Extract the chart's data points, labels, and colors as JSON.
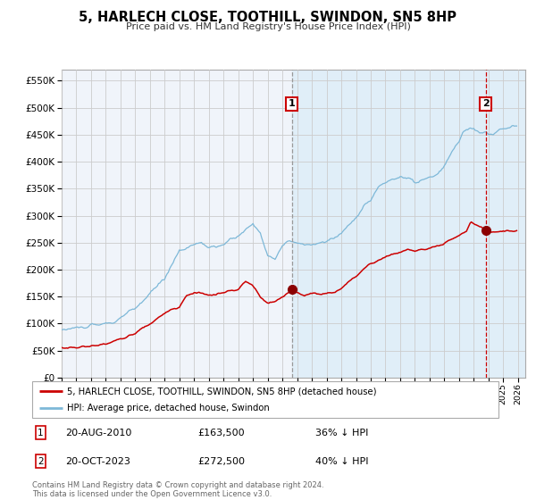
{
  "title": "5, HARLECH CLOSE, TOOTHILL, SWINDON, SN5 8HP",
  "subtitle": "Price paid vs. HM Land Registry's House Price Index (HPI)",
  "legend_property": "5, HARLECH CLOSE, TOOTHILL, SWINDON, SN5 8HP (detached house)",
  "legend_hpi": "HPI: Average price, detached house, Swindon",
  "footnote": "Contains HM Land Registry data © Crown copyright and database right 2024.\nThis data is licensed under the Open Government Licence v3.0.",
  "sale1_date": "20-AUG-2010",
  "sale1_price": 163500,
  "sale1_pct": "36% ↓ HPI",
  "sale2_date": "20-OCT-2023",
  "sale2_price": 272500,
  "sale2_pct": "40% ↓ HPI",
  "sale1_year": 2010.637,
  "sale2_year": 2023.803,
  "hpi_color": "#7db8d8",
  "property_color": "#cc0000",
  "marker_color": "#8b0000",
  "vline1_color": "#999999",
  "vline2_color": "#cc0000",
  "shade_color": "#e0eef8",
  "grid_color": "#cccccc",
  "bg_color": "#f0f4fa",
  "ylim": [
    0,
    570000
  ],
  "xlim_start": 1995.0,
  "xlim_end": 2026.5,
  "yticks": [
    0,
    50000,
    100000,
    150000,
    200000,
    250000,
    300000,
    350000,
    400000,
    450000,
    500000,
    550000
  ],
  "hpi_anchors": {
    "1995.0": 88000,
    "1996.0": 92000,
    "1997.0": 95000,
    "1998.5": 102000,
    "2000.0": 128000,
    "2001.0": 155000,
    "2002.0": 185000,
    "2003.0": 235000,
    "2003.5": 242000,
    "2004.5": 250000,
    "2005.0": 242000,
    "2005.5": 238000,
    "2006.0": 248000,
    "2006.5": 255000,
    "2007.0": 262000,
    "2007.5": 272000,
    "2008.0": 285000,
    "2008.5": 268000,
    "2009.0": 228000,
    "2009.5": 218000,
    "2010.0": 245000,
    "2010.5": 252000,
    "2011.0": 250000,
    "2011.5": 245000,
    "2012.0": 248000,
    "2012.5": 250000,
    "2013.0": 252000,
    "2013.5": 258000,
    "2014.0": 268000,
    "2014.5": 282000,
    "2015.0": 298000,
    "2015.5": 318000,
    "2016.0": 328000,
    "2016.5": 352000,
    "2017.0": 362000,
    "2017.5": 368000,
    "2018.0": 372000,
    "2018.5": 368000,
    "2019.0": 362000,
    "2019.5": 365000,
    "2020.0": 370000,
    "2020.5": 375000,
    "2021.0": 390000,
    "2021.5": 418000,
    "2022.0": 438000,
    "2022.3": 458000,
    "2022.7": 462000,
    "2023.0": 458000,
    "2023.5": 452000,
    "2023.803": 454000,
    "2024.0": 450000,
    "2024.5": 455000,
    "2025.0": 460000,
    "2025.5": 465000
  },
  "prop_anchors": {
    "1995.0": 55000,
    "1996.0": 56000,
    "1997.0": 58000,
    "1998.0": 63000,
    "1999.0": 70000,
    "2000.0": 82000,
    "2001.0": 100000,
    "2002.0": 118000,
    "2002.5": 128000,
    "2003.0": 132000,
    "2003.5": 152000,
    "2004.0": 158000,
    "2004.5": 156000,
    "2005.0": 152000,
    "2005.5": 154000,
    "2006.0": 158000,
    "2006.5": 160000,
    "2007.0": 163000,
    "2007.5": 178000,
    "2007.9": 172000,
    "2008.2": 162000,
    "2008.5": 148000,
    "2009.0": 138000,
    "2009.5": 140000,
    "2010.0": 148000,
    "2010.637": 163500,
    "2011.0": 158000,
    "2011.5": 153000,
    "2012.0": 155000,
    "2012.5": 155000,
    "2013.0": 156000,
    "2013.5": 158000,
    "2014.0": 165000,
    "2014.5": 178000,
    "2015.0": 188000,
    "2015.5": 200000,
    "2016.0": 210000,
    "2016.5": 218000,
    "2017.0": 224000,
    "2017.5": 228000,
    "2018.0": 232000,
    "2018.5": 238000,
    "2019.0": 235000,
    "2019.5": 237000,
    "2020.0": 238000,
    "2020.5": 242000,
    "2021.0": 248000,
    "2021.5": 255000,
    "2022.0": 262000,
    "2022.5": 272000,
    "2022.8": 290000,
    "2023.0": 285000,
    "2023.5": 278000,
    "2023.803": 272500,
    "2024.0": 268000,
    "2024.5": 270000,
    "2025.0": 272000
  }
}
